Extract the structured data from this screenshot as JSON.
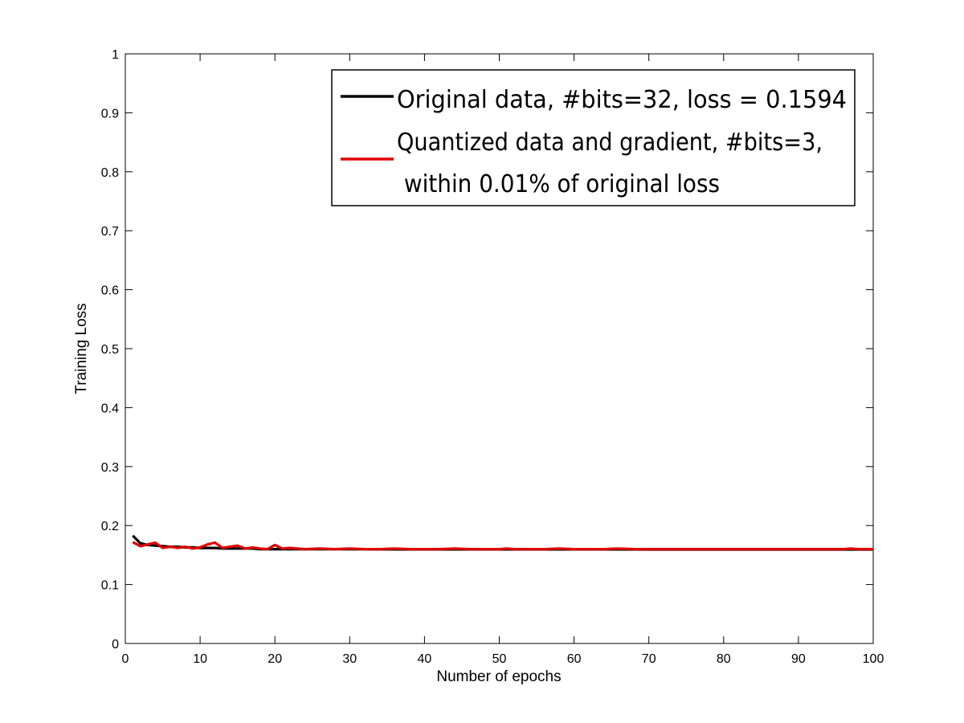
{
  "chart_data": {
    "type": "line",
    "title": "",
    "xlabel": "Number of epochs",
    "ylabel": "Training Loss",
    "xlim": [
      0,
      100
    ],
    "ylim": [
      0,
      1
    ],
    "xticks": [
      "0",
      "10",
      "20",
      "30",
      "40",
      "50",
      "60",
      "70",
      "80",
      "90",
      "100"
    ],
    "yticks": [
      "0",
      "0.1",
      "0.2",
      "0.3",
      "0.4",
      "0.5",
      "0.6",
      "0.7",
      "0.8",
      "0.9",
      "1"
    ],
    "grid": false,
    "legend_position": "top-right",
    "legend": {
      "line1": "Original data,     #bits=32, loss = 0.1594",
      "line2": "Quantized data and gradient,  #bits=3,",
      "line3": " within 0.01% of original loss"
    },
    "series": [
      {
        "name": "Original data,     #bits=32, loss = 0.1594",
        "color": "#000000",
        "x": [
          1,
          2,
          3,
          4,
          5,
          6,
          7,
          8,
          9,
          10,
          11,
          12,
          13,
          14,
          15,
          16,
          17,
          18,
          19,
          20,
          22,
          25,
          30,
          40,
          50,
          60,
          70,
          80,
          90,
          100
        ],
        "y": [
          0.183,
          0.17,
          0.167,
          0.166,
          0.165,
          0.164,
          0.164,
          0.163,
          0.163,
          0.162,
          0.162,
          0.162,
          0.161,
          0.161,
          0.161,
          0.161,
          0.161,
          0.16,
          0.16,
          0.16,
          0.16,
          0.16,
          0.1598,
          0.1596,
          0.1595,
          0.1595,
          0.1594,
          0.1594,
          0.1594,
          0.1594
        ]
      },
      {
        "name": "Quantized data and gradient,  #bits=3, within 0.01% of original loss",
        "color": "#e00000",
        "x": [
          1,
          2,
          3,
          4,
          5,
          6,
          7,
          8,
          9,
          10,
          11,
          12,
          13,
          14,
          15,
          16,
          17,
          18,
          19,
          20,
          21,
          22,
          24,
          26,
          28,
          30,
          32,
          34,
          36,
          38,
          40,
          42,
          44,
          46,
          48,
          50,
          51,
          52,
          54,
          56,
          58,
          60,
          62,
          64,
          66,
          68,
          70,
          72,
          74,
          76,
          78,
          80,
          82,
          84,
          86,
          88,
          90,
          92,
          94,
          96,
          97,
          98,
          100
        ],
        "y": [
          0.172,
          0.165,
          0.168,
          0.171,
          0.162,
          0.164,
          0.162,
          0.164,
          0.161,
          0.163,
          0.168,
          0.171,
          0.162,
          0.164,
          0.166,
          0.161,
          0.163,
          0.161,
          0.16,
          0.167,
          0.161,
          0.162,
          0.16,
          0.161,
          0.16,
          0.161,
          0.16,
          0.16,
          0.161,
          0.16,
          0.16,
          0.16,
          0.161,
          0.16,
          0.16,
          0.16,
          0.161,
          0.16,
          0.16,
          0.16,
          0.161,
          0.16,
          0.16,
          0.16,
          0.161,
          0.16,
          0.16,
          0.16,
          0.16,
          0.16,
          0.16,
          0.16,
          0.16,
          0.16,
          0.16,
          0.16,
          0.16,
          0.16,
          0.16,
          0.16,
          0.161,
          0.16,
          0.16
        ]
      }
    ]
  }
}
